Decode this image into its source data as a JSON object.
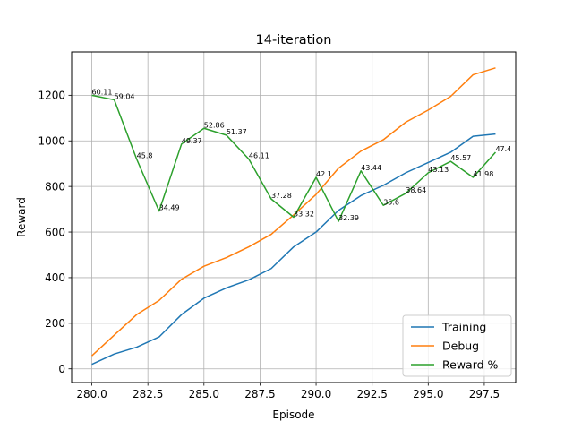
{
  "chart_data": {
    "type": "line",
    "title": "14-iteration",
    "xlabel": "Episode",
    "ylabel": "Reward",
    "xlim": [
      279.1,
      298.9
    ],
    "ylim": [
      -60,
      1390
    ],
    "xticks": [
      280.0,
      282.5,
      285.0,
      287.5,
      290.0,
      292.5,
      295.0,
      297.5
    ],
    "xtick_labels": [
      "280.0",
      "282.5",
      "285.0",
      "287.5",
      "290.0",
      "292.5",
      "295.0",
      "297.5"
    ],
    "yticks": [
      0,
      200,
      400,
      600,
      800,
      1000,
      1200
    ],
    "ytick_labels": [
      "0",
      "200",
      "400",
      "600",
      "800",
      "1000",
      "1200"
    ],
    "grid": true,
    "legend_position": "lower-right",
    "x": [
      280,
      281,
      282,
      283,
      284,
      285,
      286,
      287,
      288,
      289,
      290,
      291,
      292,
      293,
      294,
      295,
      296,
      297,
      298
    ],
    "series": [
      {
        "name": "Training",
        "color": "#1f77b4",
        "values": [
          20,
          65,
          95,
          140,
          238,
          310,
          355,
          390,
          440,
          535,
          600,
          695,
          760,
          805,
          860,
          905,
          950,
          1020,
          1030
        ]
      },
      {
        "name": "Debug",
        "color": "#ff7f0e",
        "values": [
          57,
          148,
          238,
          300,
          393,
          450,
          488,
          535,
          590,
          675,
          765,
          880,
          955,
          1005,
          1082,
          1135,
          1195,
          1290,
          1320
        ]
      },
      {
        "name": "Reward %",
        "color": "#2ca02c",
        "values": [
          1200,
          1180,
          920,
          692,
          986,
          1055,
          1025,
          920,
          745,
          665,
          840,
          647,
          868,
          717,
          770,
          860,
          910,
          840,
          950
        ],
        "annotations": [
          "60.11",
          "59.04",
          "45.8",
          "34.49",
          "49.37",
          "52.86",
          "51.37",
          "46.11",
          "37.28",
          "33.32",
          "42.1",
          "32.39",
          "43.44",
          "35.6",
          "38.64",
          "43.13",
          "45.57",
          "41.98",
          "47.4"
        ]
      }
    ]
  }
}
